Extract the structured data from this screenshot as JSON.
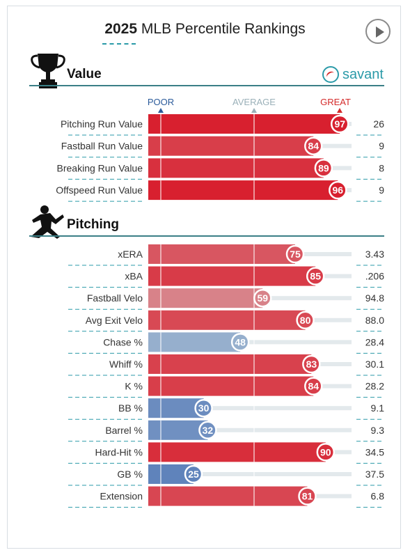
{
  "header": {
    "title_year": "2025",
    "title_rest": "MLB Percentile Rankings",
    "play_icon": "play-icon"
  },
  "sections": {
    "value": {
      "label": "Value",
      "icon": "trophy-icon"
    },
    "pitching": {
      "label": "Pitching",
      "icon": "pitcher-icon"
    }
  },
  "brand": {
    "label": "savant",
    "icon": "baseball-icon"
  },
  "scale_labels": {
    "poor": "POOR",
    "average": "AVERAGE",
    "great": "GREAT"
  },
  "colors": {
    "great": "#d8202f",
    "poor": "#3b66b0",
    "average": "#b8b8b8",
    "teal": "#2a9aa8",
    "great_label": "#d42a2a",
    "poor_label": "#2a5a9a",
    "average_label": "#9ab0b8"
  },
  "chart_data": [
    {
      "type": "bar",
      "group": "Value",
      "categories": [
        "Pitching Run Value",
        "Fastball Run Value",
        "Breaking Run Value",
        "Offspeed Run Value"
      ],
      "percentiles": [
        97,
        84,
        89,
        96
      ],
      "stat_values": [
        "26",
        "9",
        "8",
        "9"
      ],
      "xlim": [
        0,
        100
      ]
    },
    {
      "type": "bar",
      "group": "Pitching",
      "categories": [
        "xERA",
        "xBA",
        "Fastball Velo",
        "Avg Exit Velo",
        "Chase %",
        "Whiff %",
        "K %",
        "BB %",
        "Barrel %",
        "Hard-Hit %",
        "GB %",
        "Extension"
      ],
      "percentiles": [
        75,
        85,
        59,
        80,
        48,
        83,
        84,
        30,
        32,
        90,
        25,
        81
      ],
      "stat_values": [
        "3.43",
        ".206",
        "94.8",
        "88.0",
        "28.4",
        "30.1",
        "28.2",
        "9.1",
        "9.3",
        "34.5",
        "37.5",
        "6.8"
      ],
      "xlim": [
        0,
        100
      ]
    }
  ]
}
